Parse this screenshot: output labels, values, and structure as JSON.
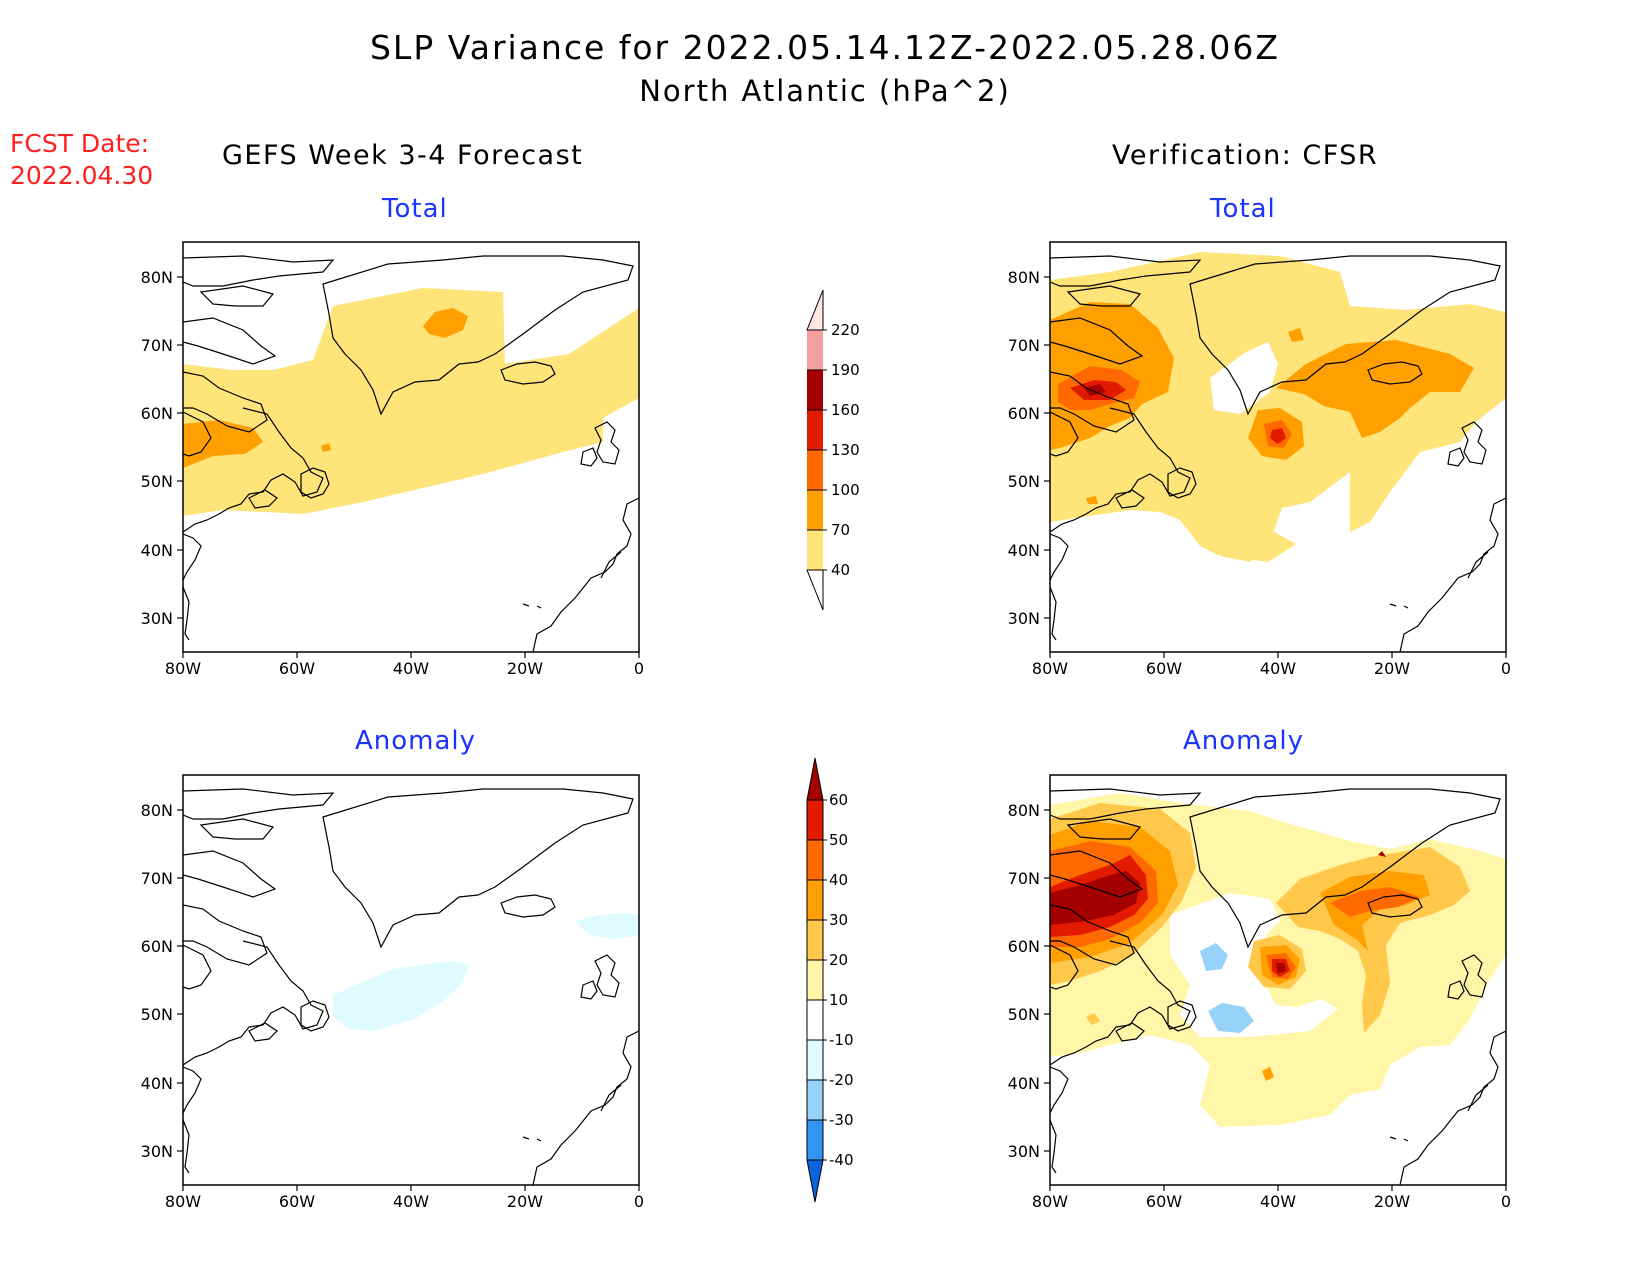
{
  "header": {
    "title": "SLP Variance for 2022.05.14.12Z-2022.05.28.06Z",
    "subtitle": "North Atlantic (hPa^2)",
    "fcst_label": "FCST Date:",
    "fcst_date": "2022.04.30"
  },
  "columns": {
    "left": "GEFS Week 3-4 Forecast",
    "right": "Verification: CFSR"
  },
  "panels": {
    "fcst_total": "Total",
    "ver_total": "Total",
    "fcst_anom": "Anomaly",
    "ver_anom": "Anomaly"
  },
  "axes": {
    "lat_labels": [
      "80N",
      "70N",
      "60N",
      "50N",
      "40N",
      "30N"
    ],
    "lon_labels": [
      "80W",
      "60W",
      "40W",
      "20W",
      "0"
    ]
  },
  "colorbars": {
    "total": {
      "levels": [
        "40",
        "70",
        "100",
        "130",
        "160",
        "190",
        "220"
      ],
      "colors": [
        "#ffe47a",
        "#ffa000",
        "#ff6a00",
        "#e21a00",
        "#a50000",
        "#f4a0a0",
        "#fde6e6"
      ]
    },
    "anomaly": {
      "levels": [
        "60",
        "50",
        "40",
        "30",
        "20",
        "10",
        "-10",
        "-20",
        "-30",
        "-40"
      ],
      "colors": [
        "#a50000",
        "#e21a00",
        "#ff6a00",
        "#ffa000",
        "#ffc84a",
        "#fff6a8",
        "#ffffff",
        "#dffbff",
        "#96d2fa",
        "#3296f0",
        "#0a64dc"
      ]
    }
  }
}
